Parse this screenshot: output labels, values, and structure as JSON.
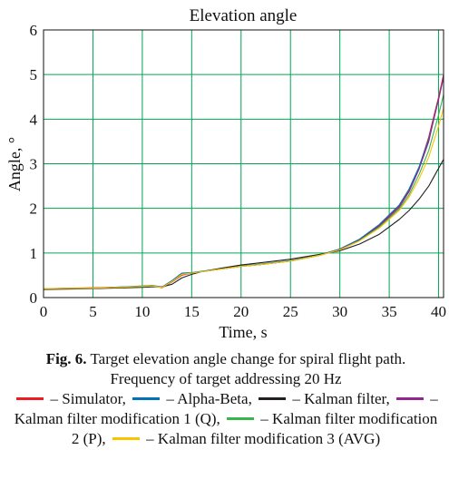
{
  "chart_data": {
    "type": "line",
    "title": "Elevation angle",
    "xlabel": "Time, s",
    "ylabel": "Angle, °",
    "xlim": [
      0,
      40.5
    ],
    "ylim": [
      0,
      6
    ],
    "x_ticks": [
      0,
      5,
      10,
      15,
      20,
      25,
      30,
      35,
      40
    ],
    "y_ticks": [
      0,
      1,
      2,
      3,
      4,
      5,
      6
    ],
    "x_tick_labels": [
      "0",
      "5",
      "10",
      "15",
      "20",
      "25",
      "30",
      "35",
      "40"
    ],
    "y_tick_labels": [
      "0",
      "1",
      "2",
      "3",
      "4",
      "5",
      "6"
    ],
    "grid": true,
    "grid_color": "#00a651",
    "series": [
      {
        "name": "Simulator",
        "color": "#ed1c24",
        "x": [
          0,
          5,
          10,
          11,
          12,
          13,
          14,
          15,
          16,
          18,
          20,
          22,
          25,
          28,
          30,
          32,
          34,
          36,
          37,
          38,
          39,
          39.5,
          40,
          40.5
        ],
        "y": [
          0.2,
          0.22,
          0.25,
          0.27,
          0.22,
          0.35,
          0.5,
          0.55,
          0.58,
          0.64,
          0.7,
          0.74,
          0.82,
          0.95,
          1.08,
          1.3,
          1.62,
          2.05,
          2.4,
          2.9,
          3.6,
          4.05,
          4.5,
          5.0
        ]
      },
      {
        "name": "Alpha-Beta",
        "color": "#0072bc",
        "x": [
          0,
          5,
          10,
          11,
          12,
          13,
          14,
          15,
          16,
          18,
          20,
          22,
          25,
          28,
          30,
          32,
          34,
          36,
          37,
          38,
          39,
          39.5,
          40,
          40.5
        ],
        "y": [
          0.2,
          0.21,
          0.26,
          0.27,
          0.24,
          0.38,
          0.55,
          0.56,
          0.59,
          0.65,
          0.71,
          0.75,
          0.83,
          0.96,
          1.09,
          1.31,
          1.64,
          2.07,
          2.43,
          2.92,
          3.55,
          4.0,
          4.45,
          4.95
        ]
      },
      {
        "name": "Kalman filter",
        "color": "#231f20",
        "x": [
          0,
          5,
          10,
          11,
          12,
          13,
          14,
          15,
          16,
          18,
          20,
          22,
          25,
          28,
          30,
          32,
          34,
          36,
          37,
          38,
          39,
          39.5,
          40,
          40.5
        ],
        "y": [
          0.18,
          0.2,
          0.23,
          0.24,
          0.24,
          0.3,
          0.44,
          0.52,
          0.58,
          0.66,
          0.73,
          0.78,
          0.86,
          0.97,
          1.05,
          1.2,
          1.42,
          1.75,
          1.95,
          2.2,
          2.5,
          2.7,
          2.9,
          3.1
        ]
      },
      {
        "name": "Kalman filter modification 1 (Q)",
        "color": "#92278f",
        "x": [
          0,
          5,
          10,
          11,
          12,
          13,
          14,
          15,
          16,
          18,
          20,
          22,
          25,
          28,
          30,
          32,
          34,
          36,
          37,
          38,
          39,
          39.5,
          40,
          40.5
        ],
        "y": [
          0.2,
          0.21,
          0.25,
          0.26,
          0.23,
          0.36,
          0.52,
          0.55,
          0.58,
          0.64,
          0.7,
          0.74,
          0.82,
          0.95,
          1.08,
          1.29,
          1.6,
          2.02,
          2.37,
          2.87,
          3.5,
          3.98,
          4.45,
          4.95
        ]
      },
      {
        "name": "Kalman filter modification 2 (P)",
        "color": "#39b54a",
        "x": [
          0,
          5,
          10,
          11,
          12,
          13,
          14,
          15,
          16,
          18,
          20,
          22,
          25,
          28,
          30,
          32,
          34,
          36,
          37,
          38,
          39,
          39.5,
          40,
          40.5
        ],
        "y": [
          0.2,
          0.21,
          0.25,
          0.26,
          0.23,
          0.36,
          0.52,
          0.55,
          0.58,
          0.64,
          0.7,
          0.74,
          0.82,
          0.95,
          1.07,
          1.28,
          1.58,
          1.98,
          2.3,
          2.75,
          3.3,
          3.7,
          4.1,
          4.55
        ]
      },
      {
        "name": "Kalman filter modification 3 (AVG)",
        "color": "#f7c500",
        "x": [
          0,
          5,
          10,
          11,
          12,
          13,
          14,
          15,
          16,
          18,
          20,
          22,
          25,
          28,
          30,
          32,
          34,
          36,
          37,
          38,
          39,
          39.5,
          40,
          40.5
        ],
        "y": [
          0.2,
          0.21,
          0.25,
          0.26,
          0.23,
          0.36,
          0.52,
          0.55,
          0.58,
          0.64,
          0.7,
          0.74,
          0.82,
          0.95,
          1.07,
          1.27,
          1.56,
          1.95,
          2.25,
          2.65,
          3.15,
          3.5,
          3.85,
          4.25
        ]
      }
    ]
  },
  "caption": {
    "fig_label": "Fig. 6.",
    "text": " Target elevation angle change for spiral flight path. Frequency of target addressing 20 Hz",
    "legend_dash": " – ",
    "legend_sep": ", ",
    "legend_end": ""
  }
}
